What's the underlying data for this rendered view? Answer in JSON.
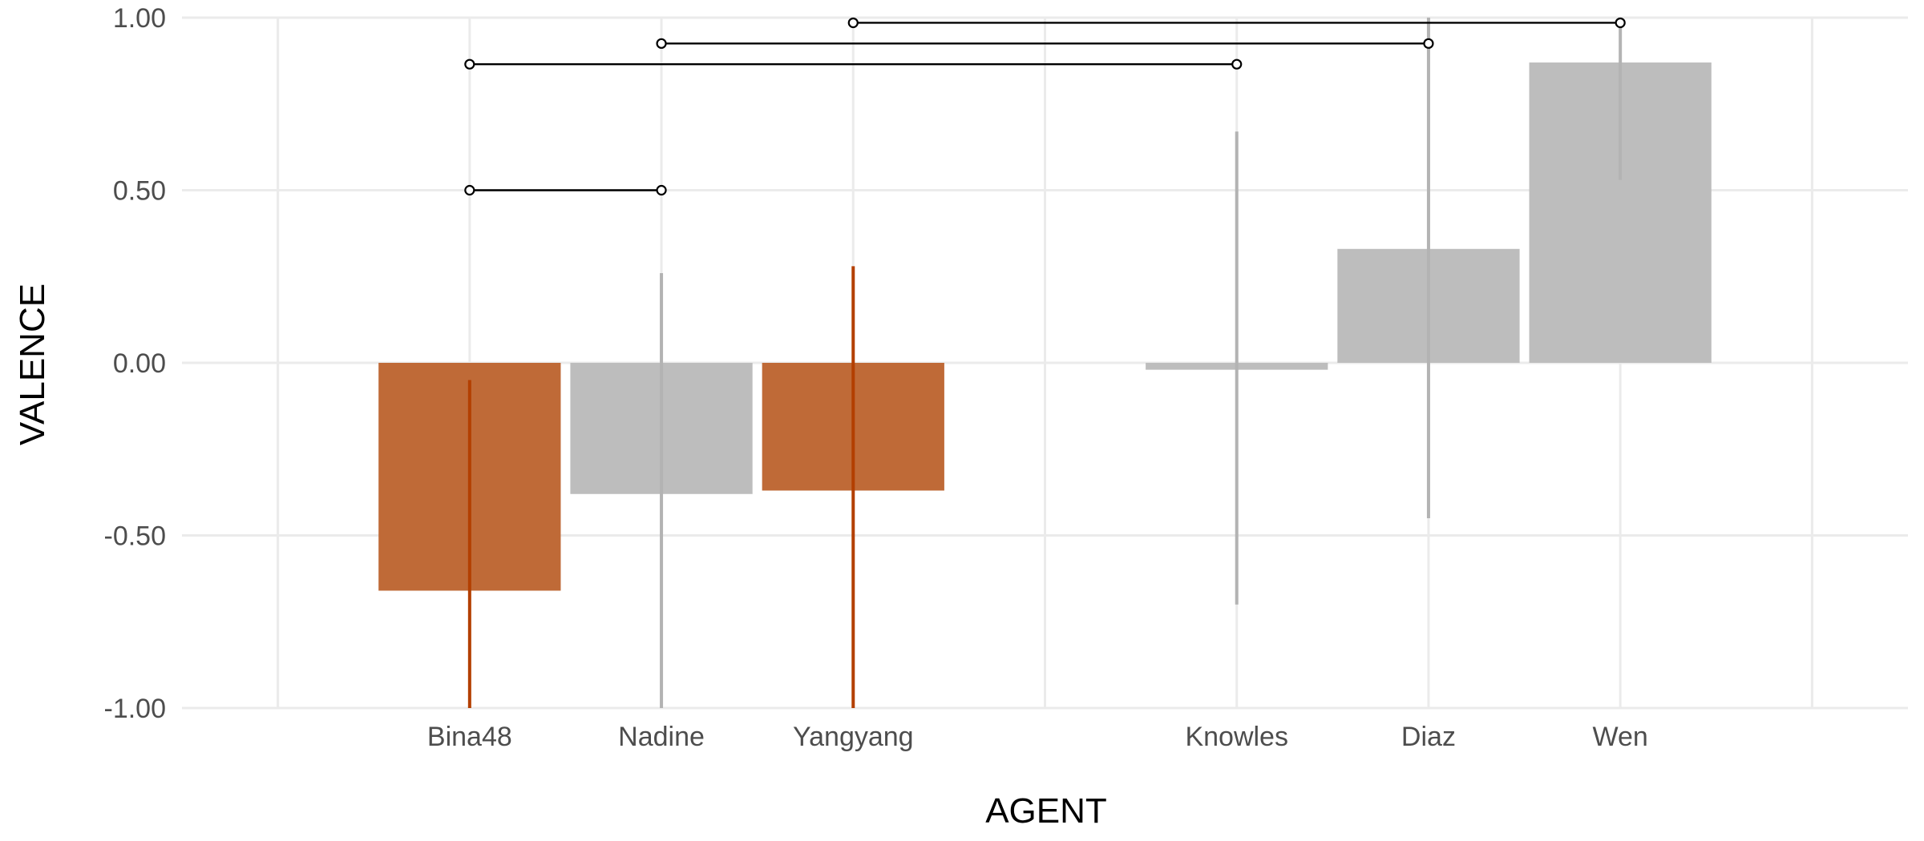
{
  "chart_data": {
    "type": "bar",
    "xlabel": "AGENT",
    "ylabel": "VALENCE",
    "ylim": [
      -1.0,
      1.0
    ],
    "yticks": [
      "-1.00",
      "-0.50",
      "0.00",
      "0.50",
      "1.00"
    ],
    "grid": true,
    "categories": [
      "Bina48",
      "Nadine",
      "Yangyang",
      "Knowles",
      "Diaz",
      "Wen"
    ],
    "x_positions": [
      2,
      3,
      4,
      6,
      7,
      8
    ],
    "x_range": [
      0.5,
      9.5
    ],
    "values": [
      -0.66,
      -0.38,
      -0.37,
      -0.02,
      0.33,
      0.87
    ],
    "error_low": [
      -1.0,
      -1.0,
      -1.0,
      -0.7,
      -0.45,
      0.53
    ],
    "error_high": [
      -0.05,
      0.26,
      0.28,
      0.67,
      1.0,
      1.0
    ],
    "bar_colors": [
      "#bf6a37",
      "#bdbdbd",
      "#bf6a37",
      "#bdbdbd",
      "#bdbdbd",
      "#bdbdbd"
    ],
    "error_colors": [
      "#b33f00",
      "#b3b3b3",
      "#b33f00",
      "#b3b3b3",
      "#b3b3b3",
      "#b3b3b3"
    ],
    "significance_brackets": [
      {
        "from": "Bina48",
        "to": "Nadine",
        "y": 0.5
      },
      {
        "from": "Bina48",
        "to": "Knowles",
        "y": 0.865
      },
      {
        "from": "Nadine",
        "to": "Diaz",
        "y": 0.925
      },
      {
        "from": "Yangyang",
        "to": "Wen",
        "y": 0.985
      }
    ]
  }
}
